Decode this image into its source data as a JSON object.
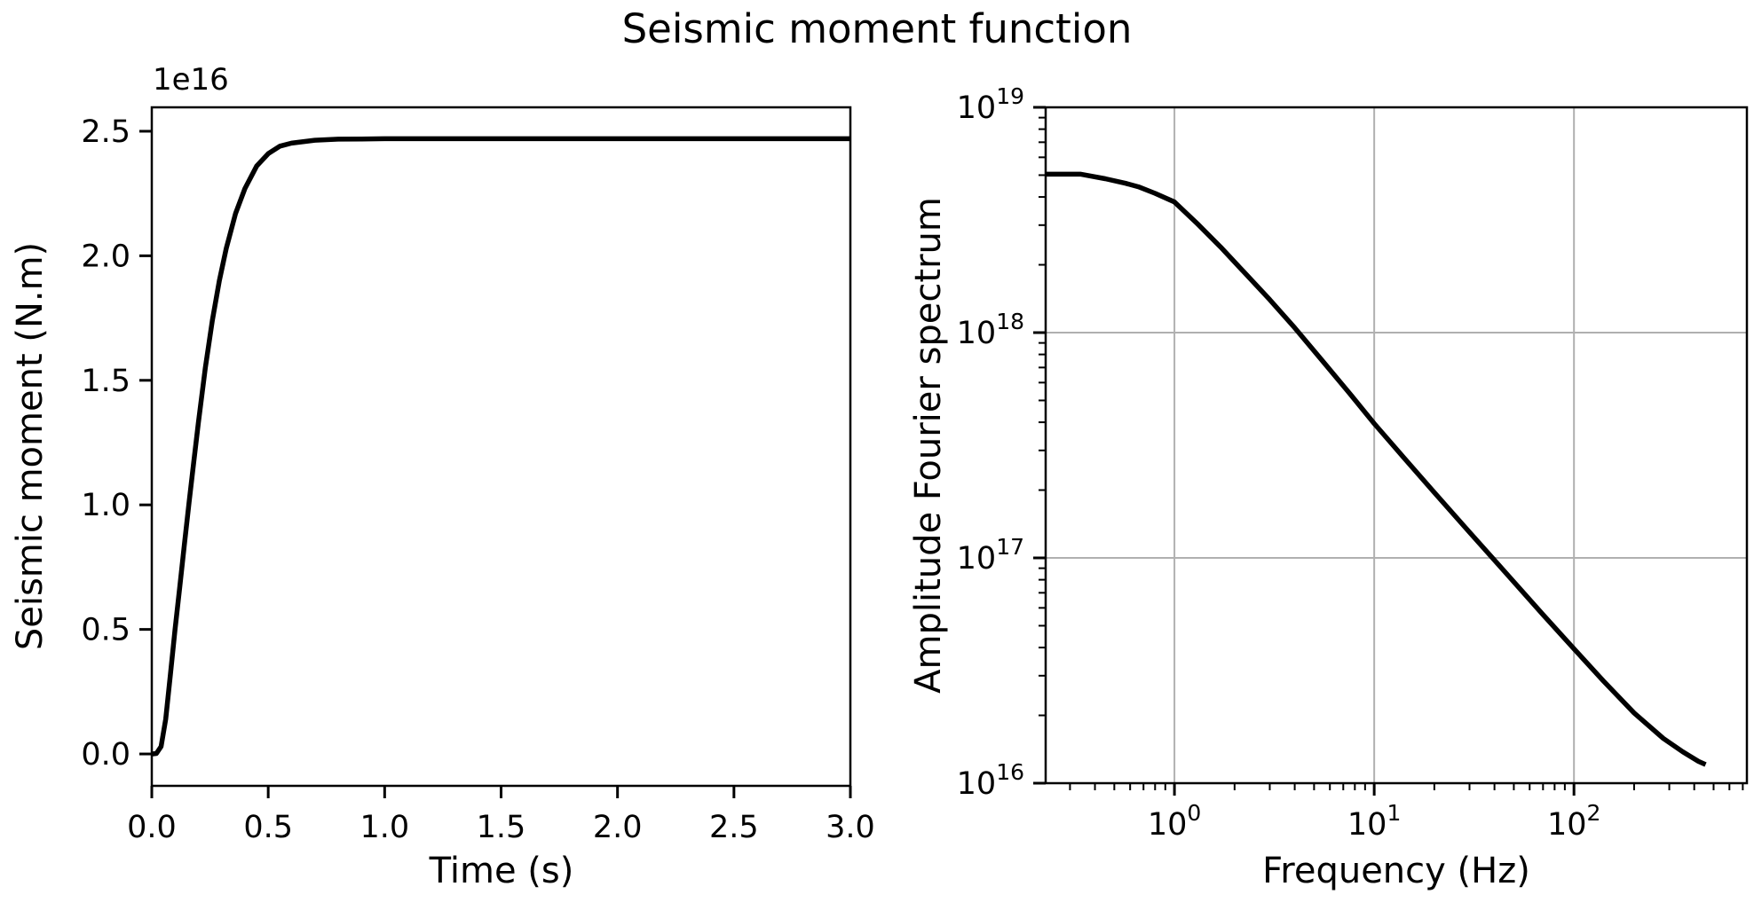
{
  "figure": {
    "title": "Seismic moment function",
    "background": "#ffffff",
    "text_color": "#000000",
    "grid_color": "#b0b0b0",
    "line_color": "#000000"
  },
  "chart_data": [
    {
      "type": "line",
      "id": "moment-time",
      "xlabel": "Time (s)",
      "ylabel": "Seismic moment (N.m)",
      "offset_text": "1e16",
      "xscale": "linear",
      "yscale": "linear",
      "grid": false,
      "xlim": [
        0,
        3
      ],
      "ylim": [
        -1280000000000000,
        25960000000000000
      ],
      "xticks": [
        0.0,
        0.5,
        1.0,
        1.5,
        2.0,
        2.5,
        3.0
      ],
      "xtick_labels": [
        "0.0",
        "0.5",
        "1.0",
        "1.5",
        "2.0",
        "2.5",
        "3.0"
      ],
      "yticks": [
        0,
        5000000000000000,
        10000000000000000,
        15000000000000000,
        20000000000000000,
        25000000000000000
      ],
      "ytick_labels": [
        "0.0",
        "0.5",
        "1.0",
        "1.5",
        "2.0",
        "2.5"
      ],
      "series": [
        {
          "name": "seismic-moment-function",
          "x": [
            0,
            0.02,
            0.04,
            0.06,
            0.08,
            0.1,
            0.12,
            0.14,
            0.16,
            0.18,
            0.2,
            0.23,
            0.26,
            0.29,
            0.32,
            0.36,
            0.4,
            0.45,
            0.5,
            0.55,
            0.6,
            0.7,
            0.8,
            0.9,
            1.0,
            1.25,
            1.5,
            2.0,
            2.5,
            3.0
          ],
          "y": [
            0,
            20000000000000.0,
            300000000000000.0,
            1400000000000000.0,
            3200000000000000.0,
            5000000000000000.0,
            6700000000000000.0,
            8400000000000000.0,
            1.01e+16,
            1.17e+16,
            1.33e+16,
            1.55e+16,
            1.74e+16,
            1.9e+16,
            2.03e+16,
            2.17e+16,
            2.27e+16,
            2.36e+16,
            2.41e+16,
            2.44e+16,
            2.452e+16,
            2.464e+16,
            2.468e+16,
            2.469e+16,
            2.47e+16,
            2.47e+16,
            2.47e+16,
            2.47e+16,
            2.47e+16,
            2.47e+16
          ]
        }
      ],
      "plateau_value": 2.47e+16
    },
    {
      "type": "line",
      "id": "fourier-spectrum",
      "xlabel": "Frequency (Hz)",
      "ylabel": "Amplitude Fourier spectrum",
      "xscale": "log",
      "yscale": "log",
      "grid": true,
      "xlim": [
        0.2266,
        734
      ],
      "ylim": [
        1e+16,
        1e+19
      ],
      "xticks": [
        1,
        10,
        100
      ],
      "xtick_labels": [
        {
          "base": "10",
          "exp": "0"
        },
        {
          "base": "10",
          "exp": "1"
        },
        {
          "base": "10",
          "exp": "2"
        }
      ],
      "yticks": [
        1e+16,
        1e+17,
        1e+18,
        1e+19
      ],
      "ytick_labels": [
        {
          "base": "10",
          "exp": "16"
        },
        {
          "base": "10",
          "exp": "17"
        },
        {
          "base": "10",
          "exp": "18"
        },
        {
          "base": "10",
          "exp": "19"
        }
      ],
      "series": [
        {
          "name": "amplitude-fourier-spectrum",
          "x": [
            0.227,
            0.3,
            0.34,
            0.45,
            0.57,
            0.66,
            0.8,
            1.0,
            1.3,
            1.7,
            2.2,
            3.0,
            4.0,
            5.5,
            7.5,
            10,
            14,
            20,
            30,
            45,
            70,
            100,
            140,
            200,
            280,
            350,
            420,
            456
          ],
          "y": [
            5.05e+18,
            5.05e+18,
            5.05e+18,
            4.82e+18,
            4.6e+18,
            4.44e+18,
            4.15e+18,
            3.8e+18,
            3.05e+18,
            2.4e+18,
            1.88e+18,
            1.4e+18,
            1.05e+18,
            7.5e+17,
            5.4e+17,
            3.95e+17,
            2.8e+17,
            1.95e+17,
            1.3e+17,
            8.7e+16,
            5.6e+16,
            3.95e+16,
            2.85e+16,
            2.05e+16,
            1.58e+16,
            1.38e+16,
            1.25e+16,
            1.21e+16
          ]
        }
      ],
      "plateau_value": 5.05e+18,
      "high_freq_slope": -1
    }
  ]
}
